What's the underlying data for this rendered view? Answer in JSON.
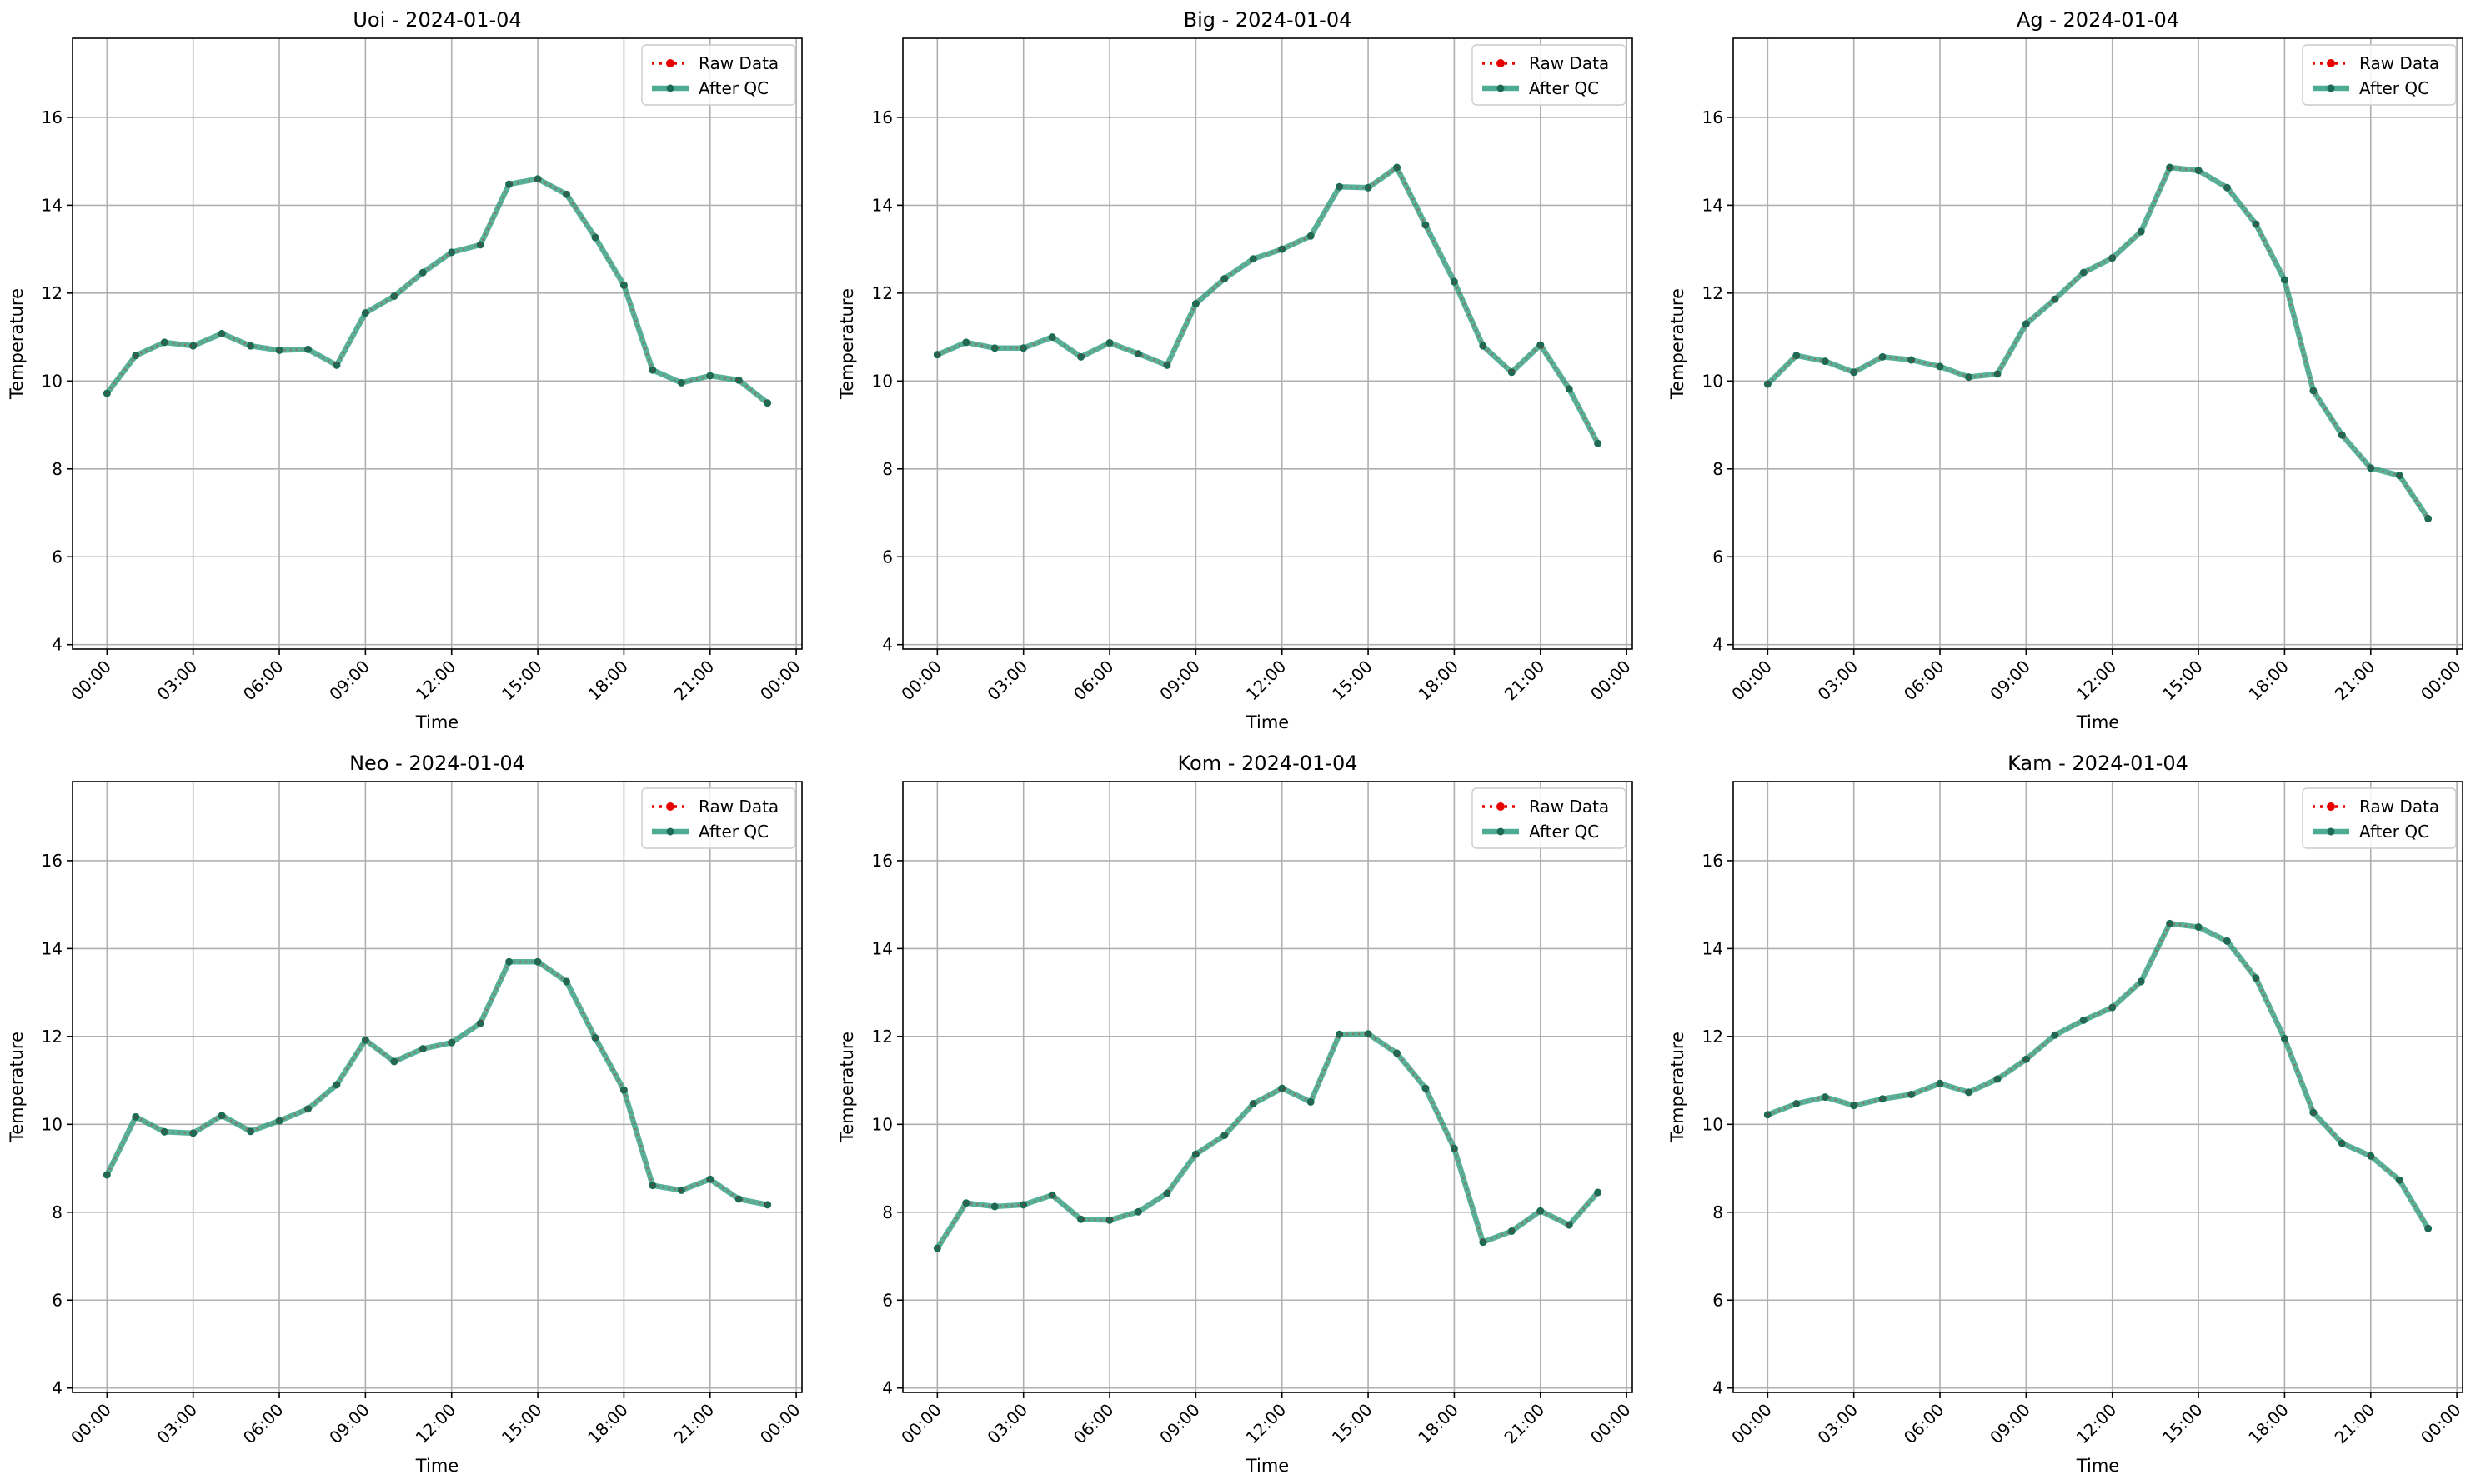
{
  "chart_data": [
    {
      "type": "line",
      "title": "Uoi - 2024-01-04",
      "xlabel": "Time",
      "ylabel": "Temperature",
      "legend_position": "top-right",
      "grid": true,
      "x": [
        "00:00",
        "01:00",
        "02:00",
        "03:00",
        "04:00",
        "05:00",
        "06:00",
        "07:00",
        "08:00",
        "09:00",
        "10:00",
        "11:00",
        "12:00",
        "13:00",
        "14:00",
        "15:00",
        "16:00",
        "17:00",
        "18:00",
        "19:00",
        "20:00",
        "21:00",
        "22:00",
        "23:00"
      ],
      "ylim": [
        3.9,
        17.8
      ],
      "yticks": [
        4,
        6,
        8,
        10,
        12,
        14,
        16
      ],
      "xticks": [
        "00:00",
        "03:00",
        "06:00",
        "09:00",
        "12:00",
        "15:00",
        "18:00",
        "21:00",
        "00:00"
      ],
      "series": [
        {
          "name": "Raw Data",
          "values": [
            9.72,
            10.58,
            10.88,
            10.8,
            11.08,
            10.8,
            10.7,
            10.72,
            10.36,
            11.55,
            11.93,
            12.47,
            12.93,
            13.1,
            14.48,
            14.6,
            14.25,
            13.27,
            12.18,
            10.25,
            9.96,
            10.12,
            10.02,
            9.5
          ]
        },
        {
          "name": "After QC",
          "values": [
            9.72,
            10.58,
            10.88,
            10.8,
            11.08,
            10.8,
            10.7,
            10.72,
            10.36,
            11.55,
            11.93,
            12.47,
            12.93,
            13.1,
            14.48,
            14.6,
            14.25,
            13.27,
            12.18,
            10.25,
            9.96,
            10.12,
            10.02,
            9.5
          ]
        }
      ]
    },
    {
      "type": "line",
      "title": "Big - 2024-01-04",
      "xlabel": "Time",
      "ylabel": "Temperature",
      "legend_position": "top-right",
      "grid": true,
      "x": [
        "00:00",
        "01:00",
        "02:00",
        "03:00",
        "04:00",
        "05:00",
        "06:00",
        "07:00",
        "08:00",
        "09:00",
        "10:00",
        "11:00",
        "12:00",
        "13:00",
        "14:00",
        "15:00",
        "16:00",
        "17:00",
        "18:00",
        "19:00",
        "20:00",
        "21:00",
        "22:00",
        "23:00"
      ],
      "ylim": [
        3.9,
        17.8
      ],
      "yticks": [
        4,
        6,
        8,
        10,
        12,
        14,
        16
      ],
      "xticks": [
        "00:00",
        "03:00",
        "06:00",
        "09:00",
        "12:00",
        "15:00",
        "18:00",
        "21:00",
        "00:00"
      ],
      "series": [
        {
          "name": "Raw Data",
          "values": [
            10.6,
            10.88,
            10.75,
            10.75,
            11.0,
            10.55,
            10.87,
            10.62,
            10.36,
            11.76,
            12.33,
            12.78,
            13.0,
            13.3,
            14.42,
            14.4,
            14.86,
            13.55,
            12.26,
            10.8,
            10.2,
            10.82,
            9.82,
            8.58
          ]
        },
        {
          "name": "After QC",
          "values": [
            10.6,
            10.88,
            10.75,
            10.75,
            11.0,
            10.55,
            10.87,
            10.62,
            10.36,
            11.76,
            12.33,
            12.78,
            13.0,
            13.3,
            14.42,
            14.4,
            14.86,
            13.55,
            12.26,
            10.8,
            10.2,
            10.82,
            9.82,
            8.58
          ]
        }
      ]
    },
    {
      "type": "line",
      "title": "Ag - 2024-01-04",
      "xlabel": "Time",
      "ylabel": "Temperature",
      "legend_position": "top-right",
      "grid": true,
      "x": [
        "00:00",
        "01:00",
        "02:00",
        "03:00",
        "04:00",
        "05:00",
        "06:00",
        "07:00",
        "08:00",
        "09:00",
        "10:00",
        "11:00",
        "12:00",
        "13:00",
        "14:00",
        "15:00",
        "16:00",
        "17:00",
        "18:00",
        "19:00",
        "20:00",
        "21:00",
        "22:00",
        "23:00"
      ],
      "ylim": [
        3.9,
        17.8
      ],
      "yticks": [
        4,
        6,
        8,
        10,
        12,
        14,
        16
      ],
      "xticks": [
        "00:00",
        "03:00",
        "06:00",
        "09:00",
        "12:00",
        "15:00",
        "18:00",
        "21:00",
        "00:00"
      ],
      "series": [
        {
          "name": "Raw Data",
          "values": [
            9.93,
            10.58,
            10.45,
            10.2,
            10.55,
            10.48,
            10.33,
            10.09,
            10.16,
            11.3,
            11.86,
            12.47,
            12.8,
            13.4,
            14.86,
            14.79,
            14.4,
            13.57,
            12.3,
            9.78,
            8.77,
            8.02,
            7.85,
            6.87
          ]
        },
        {
          "name": "After QC",
          "values": [
            9.93,
            10.58,
            10.45,
            10.2,
            10.55,
            10.48,
            10.33,
            10.09,
            10.16,
            11.3,
            11.86,
            12.47,
            12.8,
            13.4,
            14.86,
            14.79,
            14.4,
            13.57,
            12.3,
            9.78,
            8.77,
            8.02,
            7.85,
            6.87
          ]
        }
      ]
    },
    {
      "type": "line",
      "title": "Neo - 2024-01-04",
      "xlabel": "Time",
      "ylabel": "Temperature",
      "legend_position": "top-right",
      "grid": true,
      "x": [
        "00:00",
        "01:00",
        "02:00",
        "03:00",
        "04:00",
        "05:00",
        "06:00",
        "07:00",
        "08:00",
        "09:00",
        "10:00",
        "11:00",
        "12:00",
        "13:00",
        "14:00",
        "15:00",
        "16:00",
        "17:00",
        "18:00",
        "19:00",
        "20:00",
        "21:00",
        "22:00",
        "23:00"
      ],
      "ylim": [
        3.9,
        17.8
      ],
      "yticks": [
        4,
        6,
        8,
        10,
        12,
        14,
        16
      ],
      "xticks": [
        "00:00",
        "03:00",
        "06:00",
        "09:00",
        "12:00",
        "15:00",
        "18:00",
        "21:00",
        "00:00"
      ],
      "series": [
        {
          "name": "Raw Data",
          "values": [
            8.85,
            10.17,
            9.83,
            9.8,
            10.2,
            9.84,
            10.08,
            10.35,
            10.9,
            11.92,
            11.43,
            11.72,
            11.86,
            12.3,
            13.7,
            13.7,
            13.25,
            11.97,
            10.78,
            8.61,
            8.5,
            8.75,
            8.3,
            8.17
          ]
        },
        {
          "name": "After QC",
          "values": [
            8.85,
            10.17,
            9.83,
            9.8,
            10.2,
            9.84,
            10.08,
            10.35,
            10.9,
            11.92,
            11.43,
            11.72,
            11.86,
            12.3,
            13.7,
            13.7,
            13.25,
            11.97,
            10.78,
            8.61,
            8.5,
            8.75,
            8.3,
            8.17
          ]
        }
      ]
    },
    {
      "type": "line",
      "title": "Kom - 2024-01-04",
      "xlabel": "Time",
      "ylabel": "Temperature",
      "legend_position": "top-right",
      "grid": true,
      "x": [
        "00:00",
        "01:00",
        "02:00",
        "03:00",
        "04:00",
        "05:00",
        "06:00",
        "07:00",
        "08:00",
        "09:00",
        "10:00",
        "11:00",
        "12:00",
        "13:00",
        "14:00",
        "15:00",
        "16:00",
        "17:00",
        "18:00",
        "19:00",
        "20:00",
        "21:00",
        "22:00",
        "23:00"
      ],
      "ylim": [
        3.9,
        17.8
      ],
      "yticks": [
        4,
        6,
        8,
        10,
        12,
        14,
        16
      ],
      "xticks": [
        "00:00",
        "03:00",
        "06:00",
        "09:00",
        "12:00",
        "15:00",
        "18:00",
        "21:00",
        "00:00"
      ],
      "series": [
        {
          "name": "Raw Data",
          "values": [
            7.18,
            8.21,
            8.13,
            8.17,
            8.39,
            7.84,
            7.82,
            8.01,
            8.43,
            9.32,
            9.75,
            10.47,
            10.82,
            10.51,
            12.05,
            12.06,
            11.62,
            10.82,
            9.45,
            7.32,
            7.57,
            8.03,
            7.71,
            8.45
          ]
        },
        {
          "name": "After QC",
          "values": [
            7.18,
            8.21,
            8.13,
            8.17,
            8.39,
            7.84,
            7.82,
            8.01,
            8.43,
            9.32,
            9.75,
            10.47,
            10.82,
            10.51,
            12.05,
            12.06,
            11.62,
            10.82,
            9.45,
            7.32,
            7.57,
            8.03,
            7.71,
            8.45
          ]
        }
      ]
    },
    {
      "type": "line",
      "title": "Kam - 2024-01-04",
      "xlabel": "Time",
      "ylabel": "Temperature",
      "legend_position": "top-right",
      "grid": true,
      "x": [
        "00:00",
        "01:00",
        "02:00",
        "03:00",
        "04:00",
        "05:00",
        "06:00",
        "07:00",
        "08:00",
        "09:00",
        "10:00",
        "11:00",
        "12:00",
        "13:00",
        "14:00",
        "15:00",
        "16:00",
        "17:00",
        "18:00",
        "19:00",
        "20:00",
        "21:00",
        "22:00",
        "23:00"
      ],
      "ylim": [
        3.9,
        17.8
      ],
      "yticks": [
        4,
        6,
        8,
        10,
        12,
        14,
        16
      ],
      "xticks": [
        "00:00",
        "03:00",
        "06:00",
        "09:00",
        "12:00",
        "15:00",
        "18:00",
        "21:00",
        "00:00"
      ],
      "series": [
        {
          "name": "Raw Data",
          "values": [
            10.22,
            10.47,
            10.62,
            10.43,
            10.58,
            10.68,
            10.93,
            10.73,
            11.03,
            11.48,
            12.03,
            12.37,
            12.66,
            13.25,
            14.57,
            14.49,
            14.17,
            13.33,
            11.95,
            10.27,
            9.57,
            9.28,
            8.73,
            7.63
          ]
        },
        {
          "name": "After QC",
          "values": [
            10.22,
            10.47,
            10.62,
            10.43,
            10.58,
            10.68,
            10.93,
            10.73,
            11.03,
            11.48,
            12.03,
            12.37,
            12.66,
            13.25,
            14.57,
            14.49,
            14.17,
            13.33,
            11.95,
            10.27,
            9.57,
            9.28,
            8.73,
            7.63
          ]
        }
      ]
    }
  ],
  "colors": {
    "raw": "#e60000",
    "qc": "#2e9e7f",
    "qc_points": "#1d6b55",
    "grid": "#b0b0b0",
    "axis": "#000000"
  }
}
